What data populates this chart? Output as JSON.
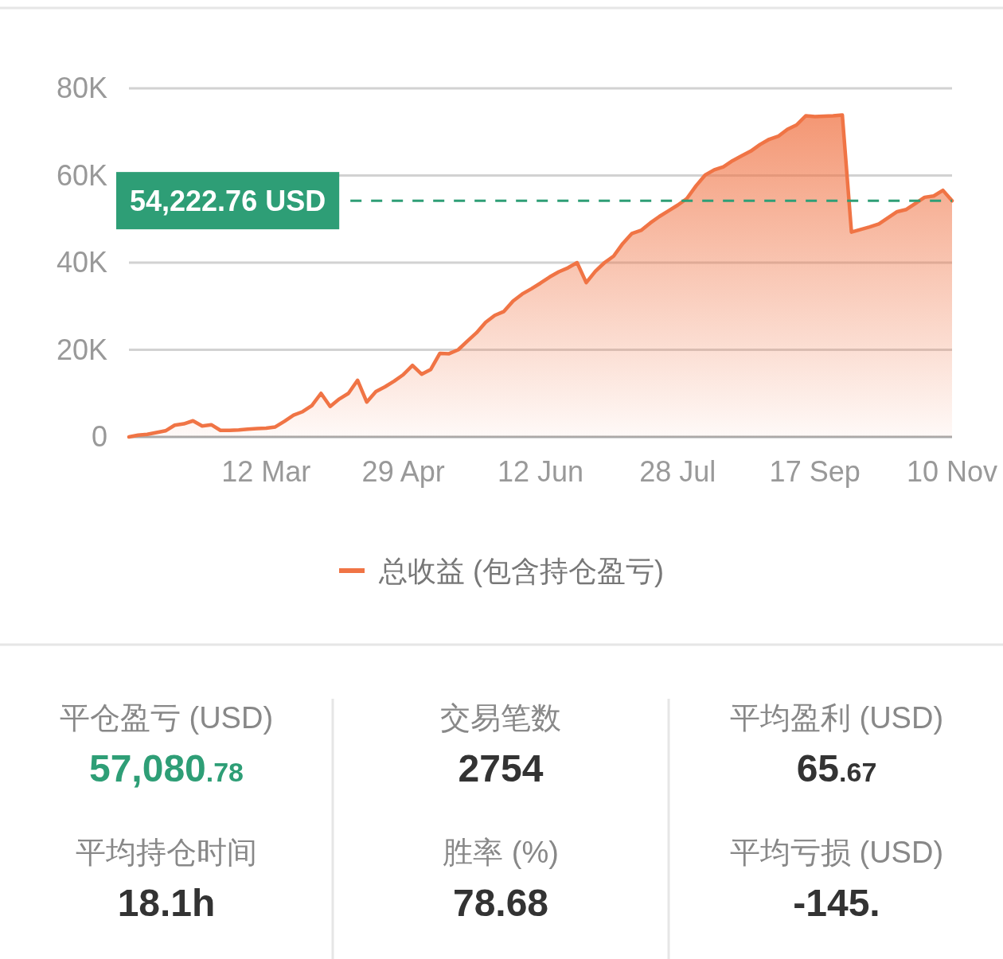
{
  "chart_data": [
    {
      "type": "area",
      "categories": [
        null,
        null,
        null,
        null,
        null,
        null,
        null,
        null,
        null,
        null,
        null,
        null,
        null,
        null,
        null,
        "12 Mar",
        null,
        null,
        null,
        null,
        null,
        null,
        null,
        null,
        null,
        null,
        null,
        null,
        null,
        null,
        "29 Apr",
        null,
        null,
        null,
        null,
        null,
        null,
        null,
        null,
        null,
        null,
        null,
        null,
        null,
        null,
        "12 Jun",
        null,
        null,
        null,
        null,
        null,
        null,
        null,
        null,
        null,
        null,
        null,
        null,
        null,
        null,
        "28 Jul",
        null,
        null,
        null,
        null,
        null,
        null,
        null,
        null,
        null,
        null,
        null,
        null,
        null,
        null,
        "17 Sep",
        null,
        null,
        null,
        null,
        null,
        null,
        null,
        null,
        null,
        null,
        null,
        null,
        null,
        null,
        "10 Nov"
      ],
      "series": [
        {
          "name": "总收益 (包含持仓盈亏)",
          "color": "#f07445",
          "values": [
            0,
            400,
            600,
            1000,
            1400,
            2700,
            3000,
            3700,
            2500,
            2800,
            1500,
            1500,
            1600,
            1800,
            1900,
            2000,
            2300,
            3600,
            5000,
            5800,
            7200,
            10000,
            7000,
            8700,
            10000,
            13000,
            8000,
            10400,
            11500,
            12800,
            14300,
            16400,
            14400,
            15500,
            19200,
            19100,
            20000,
            22000,
            23900,
            26300,
            27900,
            28800,
            31200,
            32800,
            34000,
            35300,
            36700,
            37900,
            38800,
            40000,
            35400,
            38000,
            40000,
            41500,
            44400,
            46700,
            47400,
            49100,
            50600,
            51900,
            53200,
            54700,
            57600,
            60100,
            61300,
            62000,
            63400,
            64500,
            65600,
            67100,
            68300,
            69000,
            70600,
            71600,
            73700,
            73500,
            73600,
            73700,
            73900,
            47000,
            47600,
            48200,
            48900,
            50300,
            51700,
            52200,
            53600,
            55000,
            55300,
            56600,
            54200
          ]
        }
      ],
      "ylim": [
        0,
        80000
      ],
      "yticks": [
        0,
        {
          "value": 20000,
          "label": "20K"
        },
        {
          "value": 40000,
          "label": "40K"
        },
        {
          "value": 60000,
          "label": "60K"
        },
        {
          "value": 80000,
          "label": "80K"
        }
      ],
      "ref_lines": [
        {
          "axis": "y",
          "value": 54222.76,
          "label": "54,222.76 USD",
          "color": "#2e9e76",
          "line_style": "dashed"
        }
      ],
      "grid": "y",
      "legend": "bottom"
    },
    {
      "type": "other",
      "annotations": [
        "平仓盈亏 (USD)",
        "57,080.78",
        "交易笔数",
        "2754",
        "平均盈利 (USD)",
        "65.67",
        "平均持仓时间",
        "18.1h",
        "胜率 (%)",
        "78.68",
        "平均亏损 (USD)",
        "-145."
      ],
      "colors": [
        "#2e9e76",
        "#333333",
        "#333333",
        "#333333",
        "#333333",
        "#333333"
      ]
    }
  ]
}
